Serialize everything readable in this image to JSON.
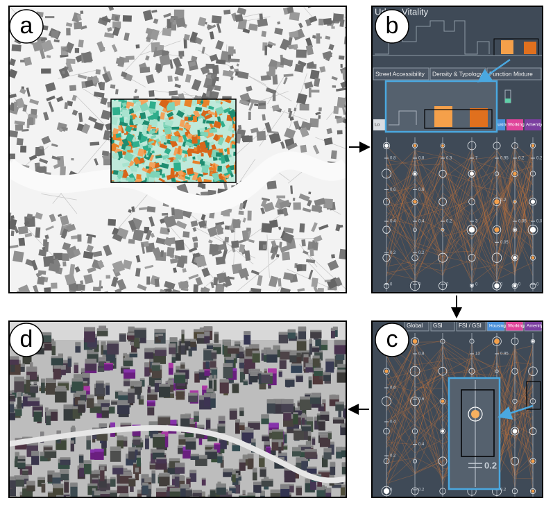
{
  "figure": {
    "panel_labels": [
      "a",
      "b",
      "c",
      "d"
    ],
    "b": {
      "title": "Urban Vitality",
      "tabs": [
        "Street Accessibility",
        "Density & Typology",
        "Function Mixture"
      ],
      "buttons": [
        "Lo",
        "Housing",
        "Working",
        "Amenity"
      ],
      "axes": [
        [
          "0.8",
          "0.6",
          "0.4",
          "0.2",
          "0"
        ],
        [
          "0.8",
          "0.6",
          "0.4",
          "0.2",
          "0"
        ],
        [
          "0.3",
          "0.2",
          "0"
        ],
        [
          "7",
          "3",
          "0"
        ],
        [
          "0.95",
          "0.2",
          "0.05",
          "0"
        ],
        [
          "0.2",
          "0.05",
          "0"
        ],
        [
          "0.2",
          "0.05",
          "0"
        ]
      ]
    },
    "c": {
      "tabs": [
        "Global",
        "GSI",
        "FSI / GSI",
        "Housing",
        "Working",
        "Amenity"
      ],
      "axes": [
        [
          "0.8",
          "0.6",
          "0.4",
          "0.2",
          "0"
        ],
        [
          "0.8",
          "0.6",
          "0.4",
          "0.2"
        ],
        [],
        [
          "13"
        ],
        [
          "0.95",
          "0.2"
        ],
        [],
        []
      ],
      "zoom_label": "0.2"
    }
  }
}
